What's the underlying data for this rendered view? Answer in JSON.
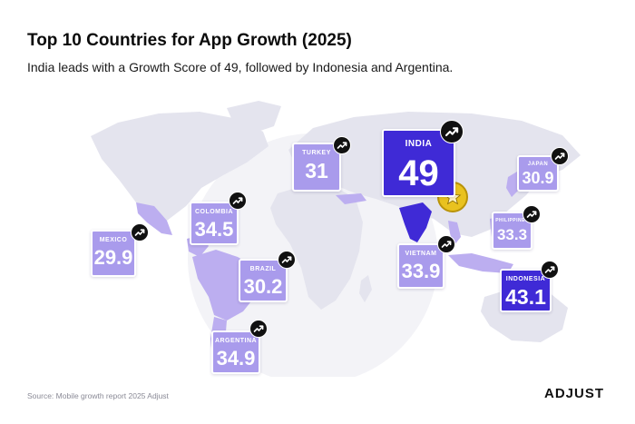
{
  "title": "Top 10 Countries for App Growth (2025)",
  "subtitle": "India leads with a Growth Score of 49, followed by Indonesia and Argentina.",
  "source": "Source: Mobile growth report 2025 Adjust",
  "brand": "ADJUST",
  "colors": {
    "card": "#a99bec",
    "card_top": "#3f2ad6",
    "highlight_region": "#bcaef0",
    "land": "#e4e4ee",
    "badge": "#111111",
    "medal": "#e9c21f"
  },
  "icons": {
    "trend": "trend-up-icon",
    "medal": "star-medal-icon"
  },
  "chart_data": {
    "type": "map",
    "metric": "Growth Score",
    "countries": [
      {
        "name": "INDIA",
        "value": "49"
      },
      {
        "name": "INDONESIA",
        "value": "43.1"
      },
      {
        "name": "ARGENTINA",
        "value": "34.9"
      },
      {
        "name": "COLOMBIA",
        "value": "34.5"
      },
      {
        "name": "VIETNAM",
        "value": "33.9"
      },
      {
        "name": "PHILIPPINES",
        "value": "33.3"
      },
      {
        "name": "TURKEY",
        "value": "31"
      },
      {
        "name": "BRAZIL",
        "value": "30.2"
      },
      {
        "name": "JAPAN",
        "value": "30.9"
      },
      {
        "name": "MEXICO",
        "value": "29.9"
      }
    ]
  }
}
